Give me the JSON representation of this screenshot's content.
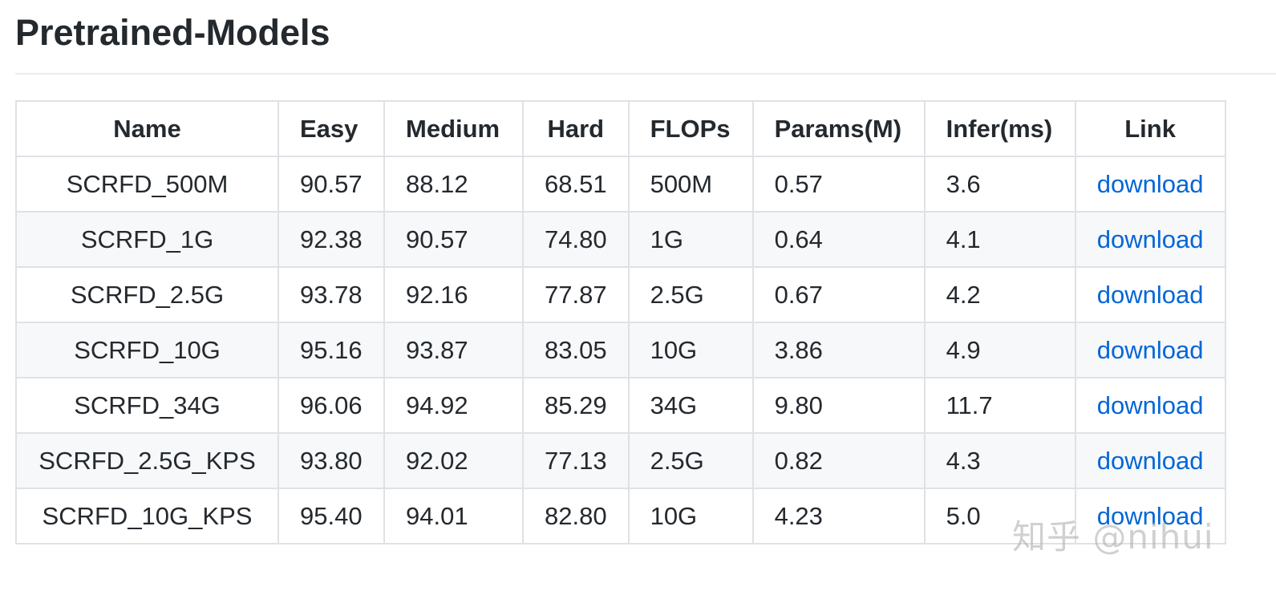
{
  "heading": "Pretrained-Models",
  "table": {
    "headers": [
      "Name",
      "Easy",
      "Medium",
      "Hard",
      "FLOPs",
      "Params(M)",
      "Infer(ms)",
      "Link"
    ],
    "rows": [
      [
        "SCRFD_500M",
        "90.57",
        "88.12",
        "68.51",
        "500M",
        "0.57",
        "3.6",
        "download"
      ],
      [
        "SCRFD_1G",
        "92.38",
        "90.57",
        "74.80",
        "1G",
        "0.64",
        "4.1",
        "download"
      ],
      [
        "SCRFD_2.5G",
        "93.78",
        "92.16",
        "77.87",
        "2.5G",
        "0.67",
        "4.2",
        "download"
      ],
      [
        "SCRFD_10G",
        "95.16",
        "93.87",
        "83.05",
        "10G",
        "3.86",
        "4.9",
        "download"
      ],
      [
        "SCRFD_34G",
        "96.06",
        "94.92",
        "85.29",
        "34G",
        "9.80",
        "11.7",
        "download"
      ],
      [
        "SCRFD_2.5G_KPS",
        "93.80",
        "92.02",
        "77.13",
        "2.5G",
        "0.82",
        "4.3",
        "download"
      ],
      [
        "SCRFD_10G_KPS",
        "95.40",
        "94.01",
        "82.80",
        "10G",
        "4.23",
        "5.0",
        "download"
      ]
    ]
  },
  "watermark": "知乎 @nihui",
  "colors": {
    "link": "#0366d6",
    "stripe": "#f6f8fa",
    "border": "#dfe2e5",
    "text": "#24292e"
  }
}
